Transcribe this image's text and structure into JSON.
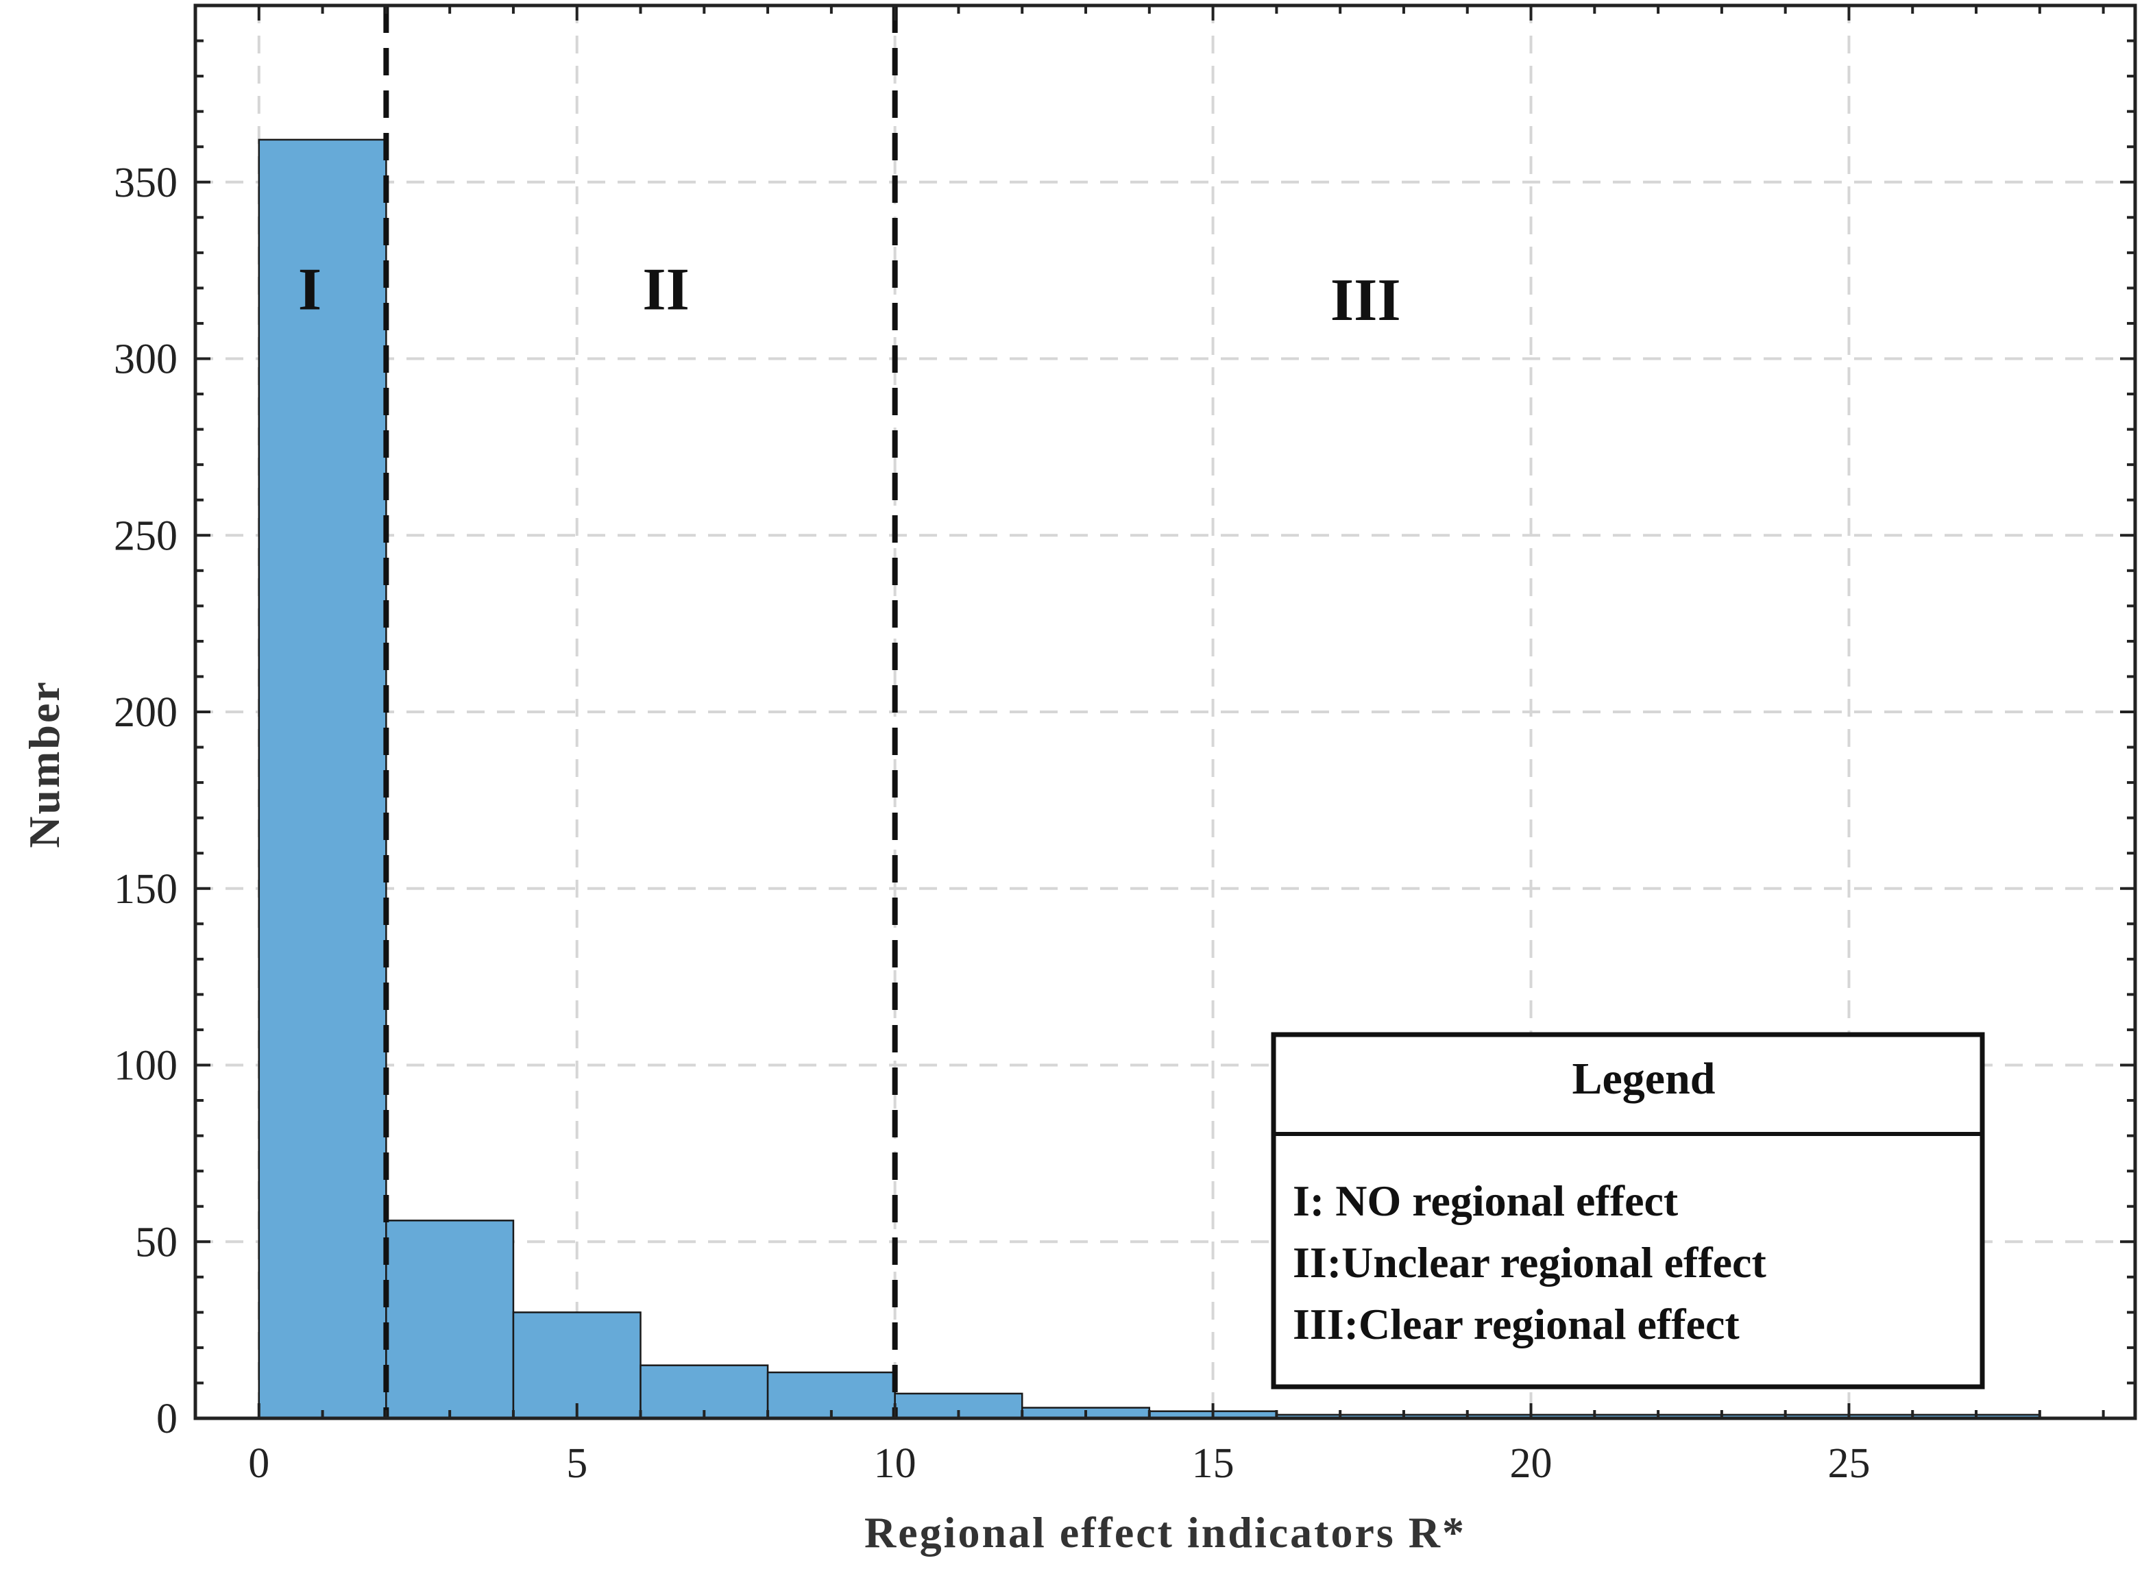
{
  "chart_data": {
    "type": "bar",
    "xlabel": "Regional effect indicators R*",
    "ylabel": "Number",
    "xlim": [
      -1,
      29.5
    ],
    "ylim": [
      0,
      400
    ],
    "xticks": [
      0,
      5,
      10,
      15,
      20,
      25
    ],
    "yticks": [
      0,
      50,
      100,
      150,
      200,
      250,
      300,
      350
    ],
    "grid": true,
    "bin_edges": [
      0,
      2,
      4,
      6,
      8,
      10,
      12,
      14,
      16,
      18,
      20,
      22,
      24,
      26,
      28
    ],
    "values": [
      362,
      56,
      30,
      15,
      13,
      7,
      3,
      2,
      1,
      1,
      1,
      1,
      1,
      1
    ],
    "bar_color": "#66aad8",
    "thresholds": [
      2,
      10
    ],
    "regions": [
      {
        "label": "I",
        "x": 0.8,
        "y": 314
      },
      {
        "label": "II",
        "x": 6.4,
        "y": 314
      },
      {
        "label": "III",
        "x": 17.4,
        "y": 311
      }
    ],
    "legend": {
      "title": "Legend",
      "placement": "lower-right",
      "items": [
        "I: NO regional effect",
        "II:Unclear regional effect",
        "III:Clear regional effect"
      ]
    }
  }
}
